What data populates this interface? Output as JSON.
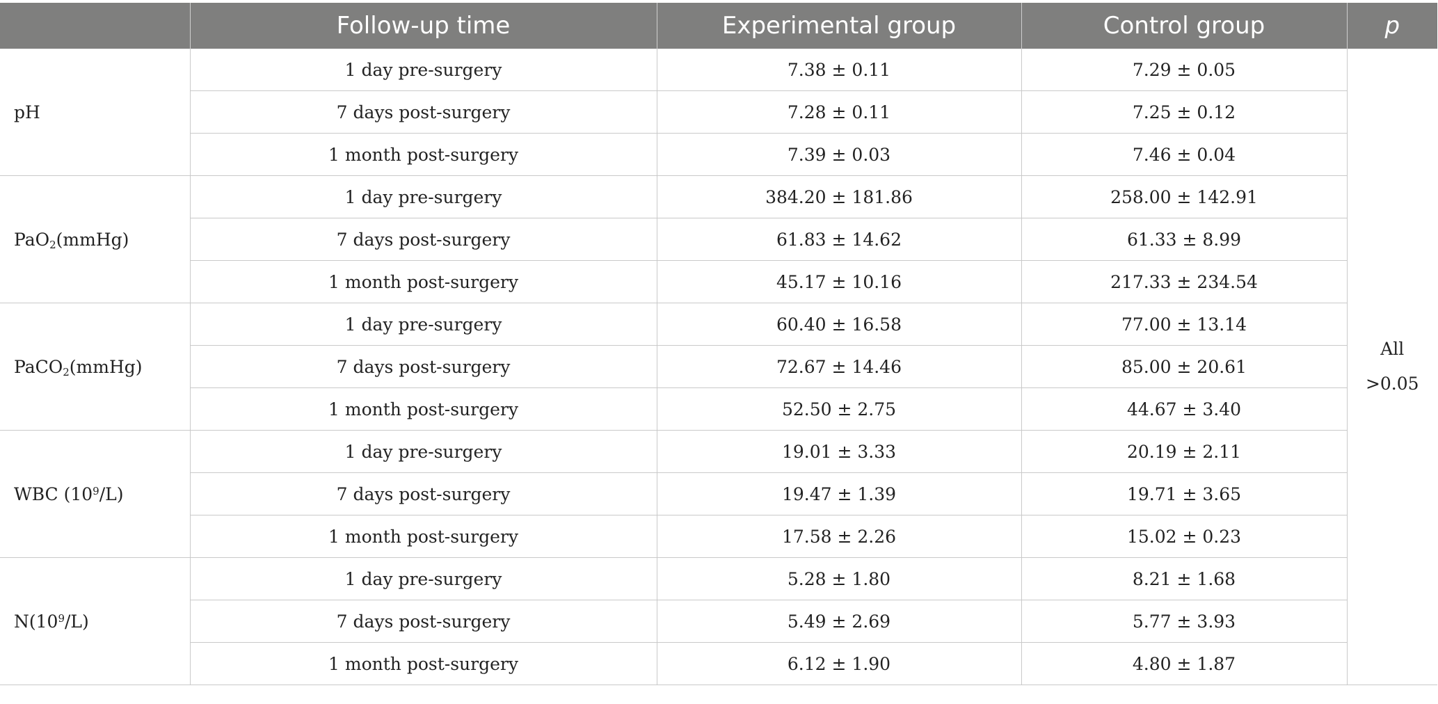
{
  "header": {
    "col_time": "Follow-up time",
    "col_exp": "Experimental group",
    "col_ctrl": "Control group",
    "col_p": "p"
  },
  "p_value": {
    "line1": "All",
    "line2": ">0.05"
  },
  "time_points": [
    "1 day pre-surgery",
    "7 days post-surgery",
    "1 month post-surgery"
  ],
  "params": [
    {
      "name": "pH",
      "sub": "",
      "sup": "",
      "suffix": "",
      "rows": [
        {
          "exp": "7.38 ± 0.11",
          "ctrl": "7.29 ± 0.05"
        },
        {
          "exp": "7.28 ± 0.11",
          "ctrl": "7.25 ± 0.12"
        },
        {
          "exp": "7.39 ± 0.03",
          "ctrl": "7.46 ± 0.04"
        }
      ]
    },
    {
      "name": "PaO",
      "sub": "2",
      "sup": "",
      "suffix": "(mmHg)",
      "rows": [
        {
          "exp": "384.20 ± 181.86",
          "ctrl": "258.00 ± 142.91"
        },
        {
          "exp": "61.83 ± 14.62",
          "ctrl": "61.33 ± 8.99"
        },
        {
          "exp": "45.17 ± 10.16",
          "ctrl": "217.33 ± 234.54"
        }
      ]
    },
    {
      "name": "PaCO",
      "sub": "2",
      "sup": "",
      "suffix": "(mmHg)",
      "rows": [
        {
          "exp": "60.40 ± 16.58",
          "ctrl": "77.00 ± 13.14"
        },
        {
          "exp": "72.67 ± 14.46",
          "ctrl": "85.00 ± 20.61"
        },
        {
          "exp": "52.50 ± 2.75",
          "ctrl": "44.67 ± 3.40"
        }
      ]
    },
    {
      "name": "WBC (10",
      "sub": "",
      "sup": "9",
      "suffix": "/L)",
      "rows": [
        {
          "exp": "19.01 ± 3.33",
          "ctrl": "20.19 ± 2.11"
        },
        {
          "exp": "19.47 ± 1.39",
          "ctrl": "19.71 ± 3.65"
        },
        {
          "exp": "17.58 ± 2.26",
          "ctrl": "15.02 ± 0.23"
        }
      ]
    },
    {
      "name": "N(10",
      "sub": "",
      "sup": "9",
      "suffix": "/L)",
      "rows": [
        {
          "exp": "5.28 ± 1.80",
          "ctrl": "8.21 ± 1.68"
        },
        {
          "exp": "5.49 ± 2.69",
          "ctrl": "5.77 ± 3.93"
        },
        {
          "exp": "6.12 ± 1.90",
          "ctrl": "4.80 ± 1.87"
        }
      ]
    }
  ]
}
